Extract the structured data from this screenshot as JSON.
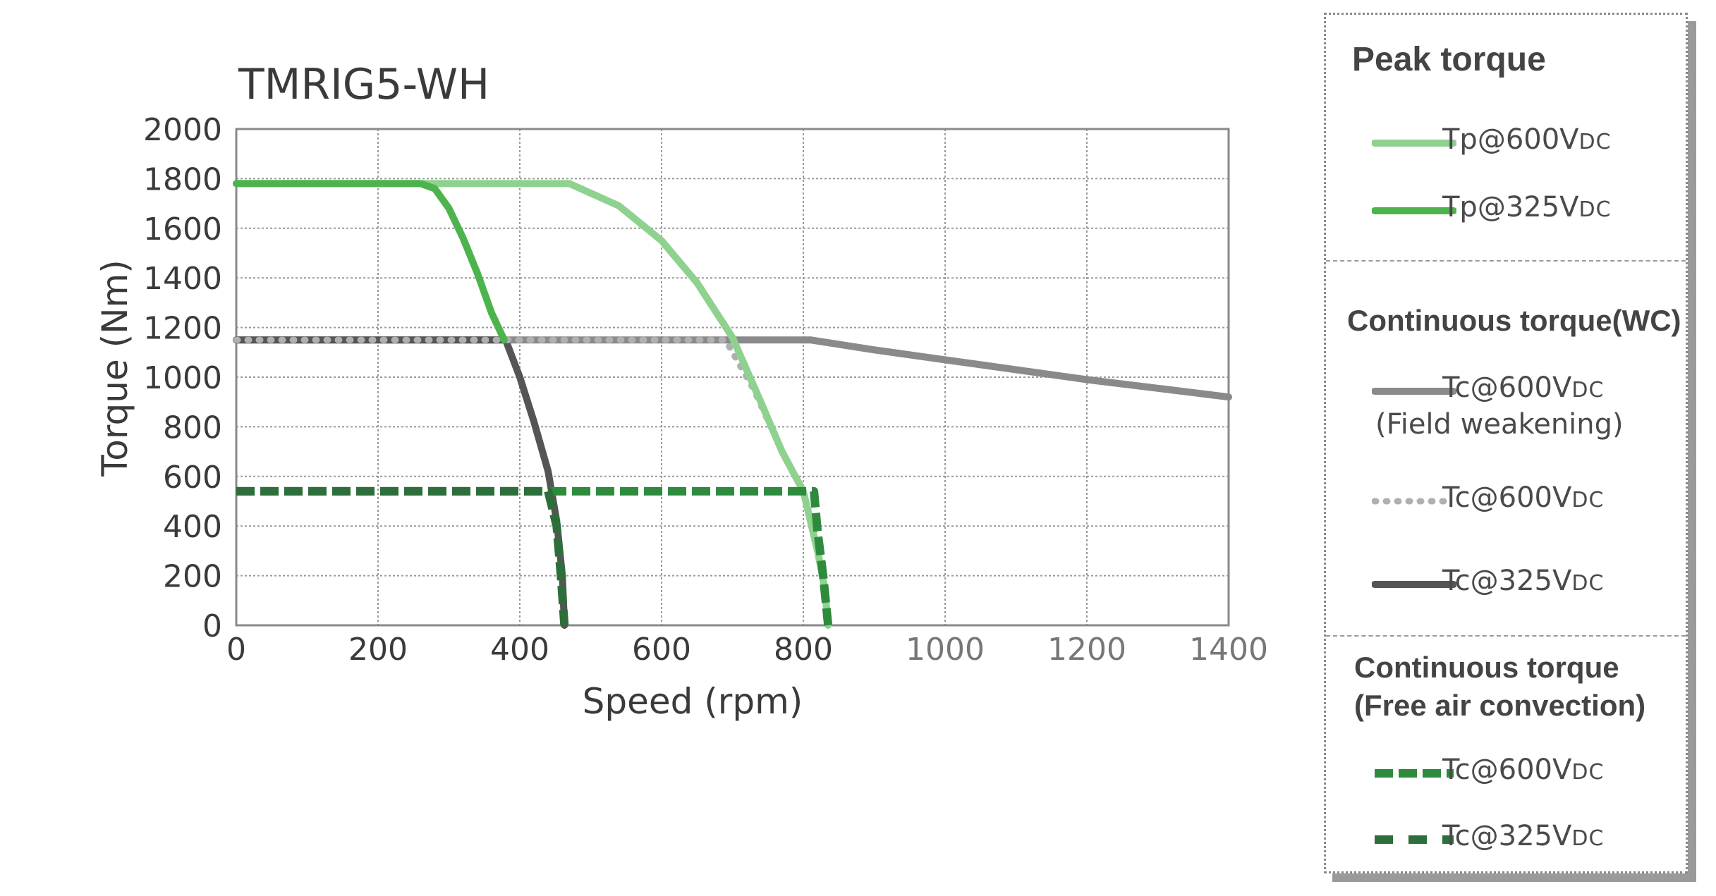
{
  "chart_data": {
    "type": "line",
    "title": "TMRIG5-WH",
    "xlabel": "Speed (rpm)",
    "ylabel": "Torque (Nm)",
    "xlim": [
      0,
      1400
    ],
    "ylim": [
      0,
      2000
    ],
    "xticks": [
      0,
      200,
      400,
      600,
      800,
      1000,
      1200,
      1400
    ],
    "yticks": [
      0,
      200,
      400,
      600,
      800,
      1000,
      1200,
      1400,
      1600,
      1800,
      2000
    ],
    "grid": true,
    "legend_position": "right",
    "series": [
      {
        "name": "Tp@600VDC",
        "group": "Peak torque",
        "color": "#8fd18f",
        "style": "solid",
        "points": [
          [
            0,
            1780
          ],
          [
            470,
            1780
          ],
          [
            540,
            1690
          ],
          [
            600,
            1550
          ],
          [
            650,
            1380
          ],
          [
            700,
            1160
          ],
          [
            740,
            900
          ],
          [
            770,
            700
          ],
          [
            800,
            540
          ],
          [
            820,
            300
          ],
          [
            830,
            150
          ],
          [
            835,
            0
          ]
        ]
      },
      {
        "name": "Tp@325VDC",
        "group": "Peak torque",
        "color": "#4db34d",
        "style": "solid",
        "points": [
          [
            0,
            1780
          ],
          [
            260,
            1780
          ],
          [
            280,
            1760
          ],
          [
            300,
            1680
          ],
          [
            320,
            1560
          ],
          [
            340,
            1420
          ],
          [
            360,
            1260
          ],
          [
            378,
            1150
          ]
        ]
      },
      {
        "name": "Tc@600VDC (Field weakening)",
        "group": "Continuous torque(WC)",
        "color": "#8a8a8a",
        "style": "solid",
        "points": [
          [
            0,
            1150
          ],
          [
            810,
            1150
          ],
          [
            900,
            1110
          ],
          [
            1000,
            1070
          ],
          [
            1100,
            1030
          ],
          [
            1200,
            990
          ],
          [
            1300,
            955
          ],
          [
            1400,
            920
          ]
        ]
      },
      {
        "name": "Tc@600VDC",
        "group": "Continuous torque(WC)",
        "color": "#b0b0b0",
        "style": "dotted",
        "points": [
          [
            0,
            1150
          ],
          [
            380,
            1150
          ],
          [
            470,
            1150
          ],
          [
            560,
            1150
          ],
          [
            690,
            1150
          ],
          [
            730,
            950
          ],
          [
            770,
            700
          ],
          [
            800,
            540
          ],
          [
            825,
            280
          ],
          [
            835,
            0
          ]
        ]
      },
      {
        "name": "Tc@325VDC",
        "group": "Continuous torque(WC)",
        "color": "#555555",
        "style": "solid",
        "points": [
          [
            0,
            1150
          ],
          [
            380,
            1150
          ],
          [
            400,
            1000
          ],
          [
            420,
            820
          ],
          [
            440,
            620
          ],
          [
            452,
            420
          ],
          [
            460,
            200
          ],
          [
            463,
            0
          ]
        ]
      },
      {
        "name": "Tc@600VDC",
        "group": "Continuous torque (Free air convection)",
        "color": "#2e8b3e",
        "style": "dashed",
        "points": [
          [
            0,
            540
          ],
          [
            815,
            540
          ],
          [
            820,
            380
          ],
          [
            828,
            200
          ],
          [
            835,
            0
          ]
        ]
      },
      {
        "name": "Tc@325VDC",
        "group": "Continuous torque (Free air convection)",
        "color": "#2e6e3a",
        "style": "dashdot",
        "points": [
          [
            0,
            540
          ],
          [
            440,
            540
          ],
          [
            452,
            400
          ],
          [
            458,
            200
          ],
          [
            463,
            0
          ]
        ]
      }
    ]
  },
  "legend": {
    "sections": [
      {
        "heading": "Peak torque",
        "items": [
          {
            "label": "Tp@600V",
            "unit": "DC",
            "series_index": 0
          },
          {
            "label": "Tp@325V",
            "unit": "DC",
            "series_index": 1
          }
        ]
      },
      {
        "heading": "Continuous torque(WC)",
        "items": [
          {
            "label": "Tc@600V",
            "unit": "DC",
            "label2": "(Field weakening)",
            "series_index": 2
          },
          {
            "label": "Tc@600V",
            "unit": "DC",
            "series_index": 3
          },
          {
            "label": "Tc@325V",
            "unit": "DC",
            "series_index": 4
          }
        ]
      },
      {
        "heading": "Continuous torque",
        "heading2": "(Free air convection)",
        "items": [
          {
            "label": "Tc@600V",
            "unit": "DC",
            "series_index": 5
          },
          {
            "label": "Tc@325V",
            "unit": "DC",
            "series_index": 6
          }
        ]
      }
    ]
  }
}
